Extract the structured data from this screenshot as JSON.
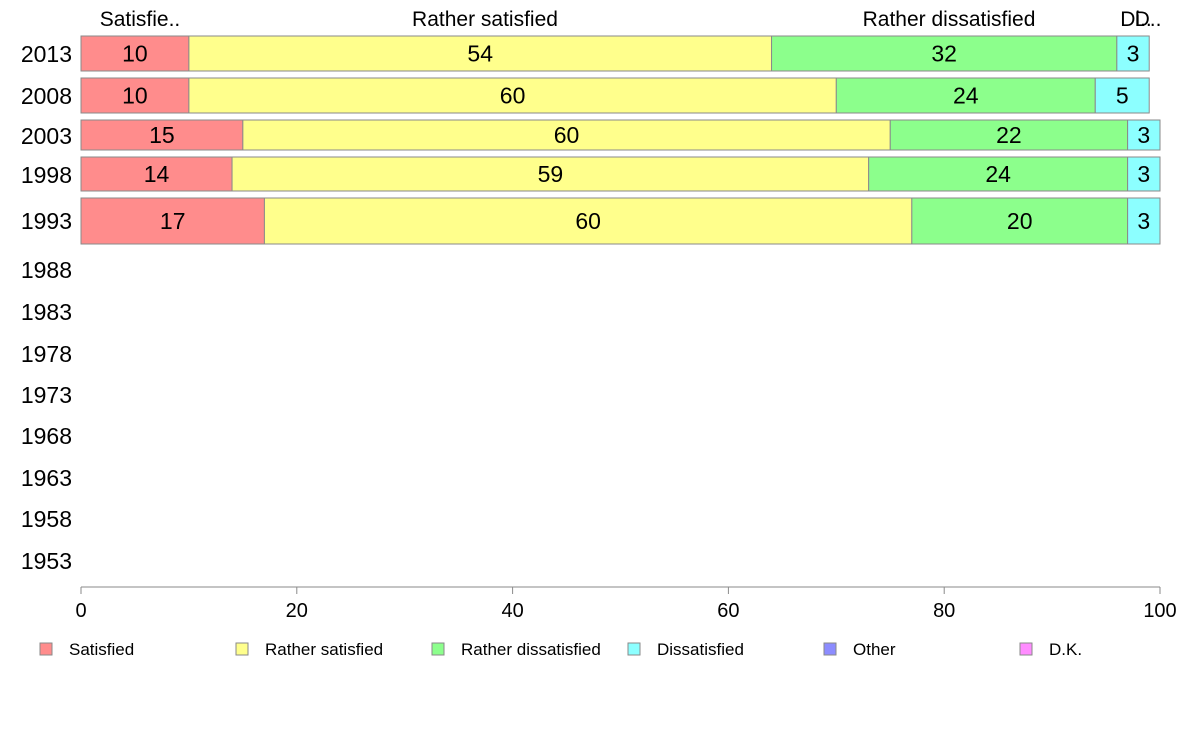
{
  "chart_data": {
    "type": "bar",
    "orientation": "horizontal",
    "stacked": true,
    "categories": [
      "2013",
      "2008",
      "2003",
      "1998",
      "1993",
      "1988",
      "1983",
      "1978",
      "1973",
      "1968",
      "1963",
      "1958",
      "1953"
    ],
    "series": [
      {
        "name": "Satisfied",
        "color": "#ff8c8c",
        "values": [
          10,
          10,
          15,
          14,
          17,
          null,
          null,
          null,
          null,
          null,
          null,
          null,
          null
        ]
      },
      {
        "name": "Rather satisfied",
        "color": "#ffff8c",
        "values": [
          54,
          60,
          60,
          59,
          60,
          null,
          null,
          null,
          null,
          null,
          null,
          null,
          null
        ]
      },
      {
        "name": "Rather dissatisfied",
        "color": "#8cff8c",
        "values": [
          32,
          24,
          22,
          24,
          20,
          null,
          null,
          null,
          null,
          null,
          null,
          null,
          null
        ]
      },
      {
        "name": "Dissatisfied",
        "color": "#8cffff",
        "values": [
          3,
          5,
          3,
          3,
          3,
          null,
          null,
          null,
          null,
          null,
          null,
          null,
          null
        ]
      },
      {
        "name": "Other",
        "color": "#8c8cff",
        "values": [
          null,
          null,
          null,
          null,
          null,
          null,
          null,
          null,
          null,
          null,
          null,
          null,
          null
        ]
      },
      {
        "name": "D.K.",
        "color": "#ff8cff",
        "values": [
          null,
          null,
          null,
          null,
          null,
          null,
          null,
          null,
          null,
          null,
          null,
          null,
          null
        ]
      }
    ],
    "top_labels": [
      "Satisfie..",
      "Rather satisfied",
      "Rather dissatisfied",
      "Di..",
      "D.."
    ],
    "xlim": [
      0,
      100
    ],
    "xticks": [
      0,
      20,
      40,
      60,
      80,
      100
    ],
    "grid": false,
    "legend_position": "bottom"
  }
}
